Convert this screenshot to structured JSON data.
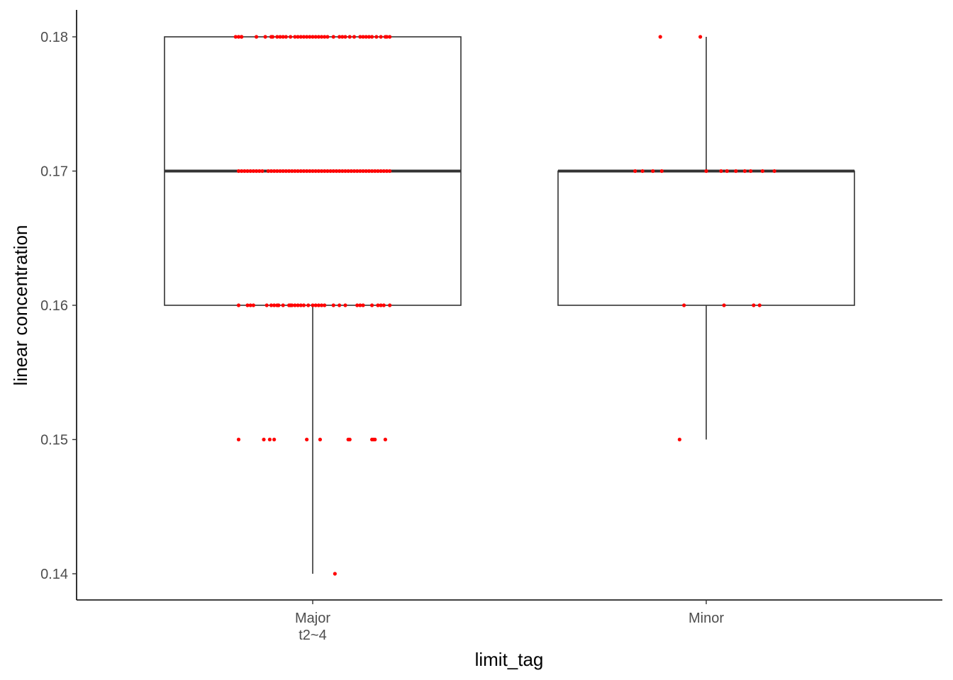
{
  "chart_data": {
    "type": "box",
    "xlabel": "limit_tag",
    "ylabel": "linear concentration",
    "ylim": [
      0.138,
      0.182
    ],
    "yticks": [
      0.14,
      0.15,
      0.16,
      0.17,
      0.18
    ],
    "ytick_labels": [
      "0.14",
      "0.15",
      "0.16",
      "0.17",
      "0.18"
    ],
    "grid": false,
    "colors": {
      "box": "#333333",
      "point": "#ff0000"
    },
    "categories": [
      {
        "label_lines": [
          "Major",
          "t2~4"
        ]
      },
      {
        "label_lines": [
          "Minor"
        ]
      }
    ],
    "boxes": [
      {
        "min": 0.14,
        "q1": 0.16,
        "median": 0.17,
        "q3": 0.18,
        "max": 0.18
      },
      {
        "min": 0.15,
        "q1": 0.16,
        "median": 0.17,
        "q3": 0.17,
        "max": 0.18
      }
    ],
    "points": [
      {
        "category": 0,
        "groups": [
          {
            "y": 0.18,
            "jitter": [
              -0.52,
              -0.5,
              -0.48,
              -0.48,
              -0.38,
              -0.32,
              -0.28,
              -0.27,
              -0.24,
              -0.22,
              -0.2,
              -0.18,
              -0.15,
              -0.12,
              -0.1,
              -0.08,
              -0.06,
              -0.04,
              -0.02,
              0.0,
              0.02,
              0.04,
              0.06,
              0.08,
              0.1,
              0.14,
              0.18,
              0.2,
              0.22,
              0.25,
              0.28,
              0.32,
              0.34,
              0.36,
              0.38,
              0.4,
              0.43,
              0.46,
              0.49,
              0.5,
              0.52
            ]
          },
          {
            "y": 0.17,
            "jitter": [
              -0.5,
              -0.48,
              -0.46,
              -0.44,
              -0.42,
              -0.4,
              -0.38,
              -0.36,
              -0.34,
              -0.3,
              -0.28,
              -0.26,
              -0.24,
              -0.22,
              -0.2,
              -0.18,
              -0.16,
              -0.14,
              -0.12,
              -0.1,
              -0.08,
              -0.06,
              -0.04,
              -0.02,
              0.0,
              0.02,
              0.04,
              0.06,
              0.08,
              0.1,
              0.12,
              0.14,
              0.16,
              0.18,
              0.2,
              0.22,
              0.24,
              0.26,
              0.28,
              0.3,
              0.32,
              0.34,
              0.36,
              0.38,
              0.4,
              0.42,
              0.44,
              0.46,
              0.48,
              0.5,
              0.52
            ]
          },
          {
            "y": 0.16,
            "jitter": [
              -0.5,
              -0.44,
              -0.42,
              -0.4,
              -0.31,
              -0.28,
              -0.26,
              -0.24,
              -0.23,
              -0.2,
              -0.16,
              -0.15,
              -0.14,
              -0.12,
              -0.1,
              -0.08,
              -0.06,
              -0.03,
              0.0,
              0.02,
              0.04,
              0.06,
              0.08,
              0.14,
              0.18,
              0.22,
              0.3,
              0.32,
              0.34,
              0.4,
              0.44,
              0.46,
              0.48,
              0.52
            ]
          },
          {
            "y": 0.15,
            "jitter": [
              -0.5,
              -0.33,
              -0.29,
              -0.26,
              -0.04,
              0.05,
              0.24,
              0.25,
              0.4,
              0.41,
              0.42,
              0.49
            ]
          },
          {
            "y": 0.14,
            "jitter": [
              0.15
            ]
          }
        ]
      },
      {
        "category": 1,
        "groups": [
          {
            "y": 0.18,
            "jitter": [
              -0.31,
              -0.04
            ]
          },
          {
            "y": 0.17,
            "jitter": [
              -0.48,
              -0.43,
              -0.36,
              -0.3,
              0.0,
              0.1,
              0.14,
              0.2,
              0.26,
              0.3,
              0.38,
              0.46
            ]
          },
          {
            "y": 0.16,
            "jitter": [
              -0.15,
              0.12,
              0.32,
              0.36
            ]
          },
          {
            "y": 0.15,
            "jitter": [
              -0.18
            ]
          }
        ]
      }
    ]
  }
}
